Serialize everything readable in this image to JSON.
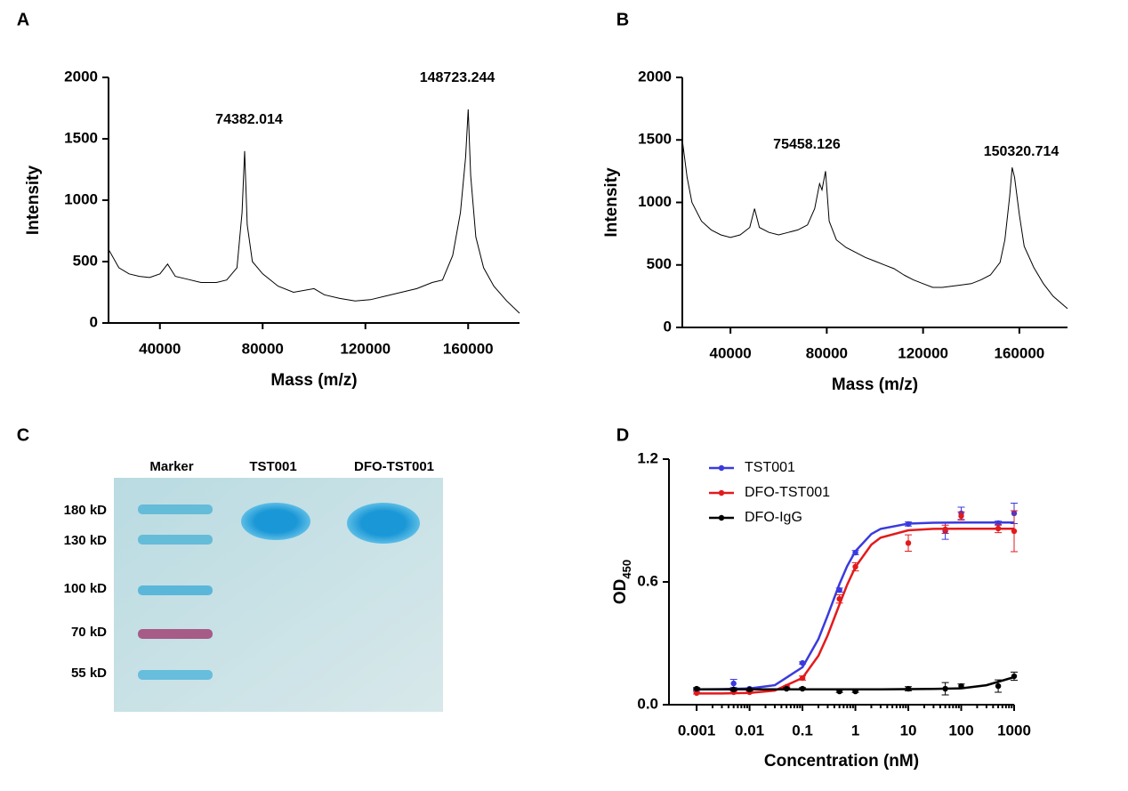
{
  "chart_data": [
    {
      "type": "spectrum",
      "panel": "A",
      "ylabel": "Intensity",
      "xlabel": "Mass (m/z)",
      "xlim": [
        20000,
        180000
      ],
      "xticks": [
        40000,
        80000,
        120000,
        160000
      ],
      "ylim": [
        0,
        2000
      ],
      "yticks": [
        0,
        500,
        1000,
        1500,
        2000
      ],
      "color": "#000000",
      "annotations": [
        "74382.014",
        "148723.244"
      ],
      "x": [
        20000,
        24000,
        28000,
        32000,
        36000,
        40000,
        43000,
        46000,
        50000,
        56000,
        62000,
        66000,
        70000,
        72000,
        73000,
        74000,
        76000,
        80000,
        86000,
        92000,
        100000,
        104000,
        110000,
        116000,
        122000,
        128000,
        134000,
        140000,
        146000,
        150000,
        154000,
        157000,
        159000,
        160000,
        161000,
        163000,
        166000,
        170000,
        175000,
        180000
      ],
      "values": [
        600,
        450,
        400,
        380,
        370,
        400,
        480,
        380,
        360,
        330,
        330,
        350,
        450,
        900,
        1400,
        800,
        500,
        400,
        300,
        250,
        280,
        230,
        200,
        180,
        190,
        220,
        250,
        280,
        330,
        350,
        550,
        900,
        1350,
        1740,
        1200,
        700,
        450,
        300,
        180,
        80
      ]
    },
    {
      "type": "spectrum",
      "panel": "B",
      "ylabel": "Intensity",
      "xlabel": "Mass (m/z)",
      "xlim": [
        20000,
        180000
      ],
      "xticks": [
        40000,
        80000,
        120000,
        160000
      ],
      "ylim": [
        0,
        2000
      ],
      "yticks": [
        0,
        500,
        1000,
        1500,
        2000
      ],
      "color": "#000000",
      "annotations": [
        "75458.126",
        "150320.714"
      ],
      "x": [
        20000,
        22000,
        24000,
        28000,
        32000,
        36000,
        40000,
        44000,
        48000,
        50000,
        52000,
        56000,
        60000,
        64000,
        68000,
        72000,
        75000,
        77000,
        78000,
        79500,
        81000,
        84000,
        88000,
        92000,
        96000,
        100000,
        104000,
        108000,
        112000,
        116000,
        120000,
        124000,
        128000,
        132000,
        136000,
        140000,
        144000,
        148000,
        152000,
        154000,
        156000,
        157000,
        158000,
        160000,
        162000,
        166000,
        170000,
        174000,
        180000
      ],
      "values": [
        1500,
        1200,
        1000,
        850,
        780,
        740,
        720,
        740,
        800,
        950,
        800,
        760,
        740,
        760,
        780,
        820,
        950,
        1150,
        1100,
        1250,
        850,
        700,
        640,
        600,
        560,
        530,
        500,
        470,
        420,
        380,
        350,
        320,
        320,
        330,
        340,
        350,
        380,
        420,
        520,
        700,
        1050,
        1280,
        1200,
        900,
        650,
        480,
        350,
        250,
        150
      ]
    },
    {
      "type": "gel",
      "panel": "C",
      "lanes": [
        "Marker",
        "TST001",
        "DFO-TST001"
      ],
      "ladder": [
        "180 kD",
        "130 kD",
        "100 kD",
        "70 kD",
        "55 kD"
      ]
    },
    {
      "type": "dose",
      "panel": "D",
      "ylabel": "OD",
      "ylabel_sub": "450",
      "xlabel": "Concentration (nM)",
      "xscale": "log",
      "xlim": [
        0.0003,
        1000
      ],
      "xticks": [
        0.001,
        0.01,
        0.1,
        1,
        10,
        100,
        1000
      ],
      "ylim": [
        0,
        1.2
      ],
      "yticks": [
        {
          "value": 0,
          "label": "0.0"
        },
        0.6,
        1.2
      ],
      "legend": "top-left",
      "x": [
        0.001,
        0.005,
        0.01,
        0.05,
        0.1,
        0.5,
        1,
        10,
        50,
        100,
        500,
        1000
      ],
      "fit_x": [
        0.001,
        0.003,
        0.01,
        0.03,
        0.1,
        0.2,
        0.3,
        0.5,
        0.7,
        1,
        2,
        3,
        10,
        30,
        100,
        300,
        1000
      ],
      "series": [
        {
          "name": "TST001",
          "color": "#3a3adf",
          "values": [
            0.074,
            0.104,
            0.078,
            0.087,
            0.204,
            0.56,
            0.743,
            0.883,
            0.848,
            0.935,
            0.887,
            0.935
          ],
          "errors": [
            0.005,
            0.02,
            0.005,
            0.005,
            0.005,
            0.01,
            0.01,
            0.01,
            0.04,
            0.03,
            0.01,
            0.05
          ],
          "fit": [
            0.075,
            0.076,
            0.079,
            0.095,
            0.183,
            0.321,
            0.436,
            0.589,
            0.677,
            0.75,
            0.834,
            0.859,
            0.885,
            0.889,
            0.89,
            0.89,
            0.89
          ]
        },
        {
          "name": "DFO-TST001",
          "color": "#e31a1c",
          "values": [
            0.057,
            0.061,
            0.061,
            0.087,
            0.13,
            0.517,
            0.674,
            0.79,
            0.857,
            0.922,
            0.861,
            0.848
          ],
          "errors": [
            0.005,
            0.005,
            0.005,
            0.005,
            0.01,
            0.02,
            0.02,
            0.04,
            0.02,
            0.02,
            0.02,
            0.1
          ],
          "fit": [
            0.055,
            0.055,
            0.058,
            0.069,
            0.131,
            0.239,
            0.339,
            0.489,
            0.586,
            0.673,
            0.782,
            0.816,
            0.852,
            0.859,
            0.86,
            0.86,
            0.86
          ]
        },
        {
          "name": "DFO-IgG",
          "color": "#000000",
          "values": [
            0.078,
            0.074,
            0.074,
            0.078,
            0.078,
            0.065,
            0.065,
            0.078,
            0.078,
            0.091,
            0.091,
            0.139
          ],
          "errors": [
            0.005,
            0.005,
            0.005,
            0.005,
            0.005,
            0.005,
            0.005,
            0.01,
            0.03,
            0.01,
            0.03,
            0.02
          ],
          "fit": [
            0.075,
            0.075,
            0.075,
            0.075,
            0.075,
            0.075,
            0.075,
            0.075,
            0.075,
            0.075,
            0.075,
            0.075,
            0.076,
            0.077,
            0.08,
            0.095,
            0.135
          ]
        }
      ]
    }
  ]
}
